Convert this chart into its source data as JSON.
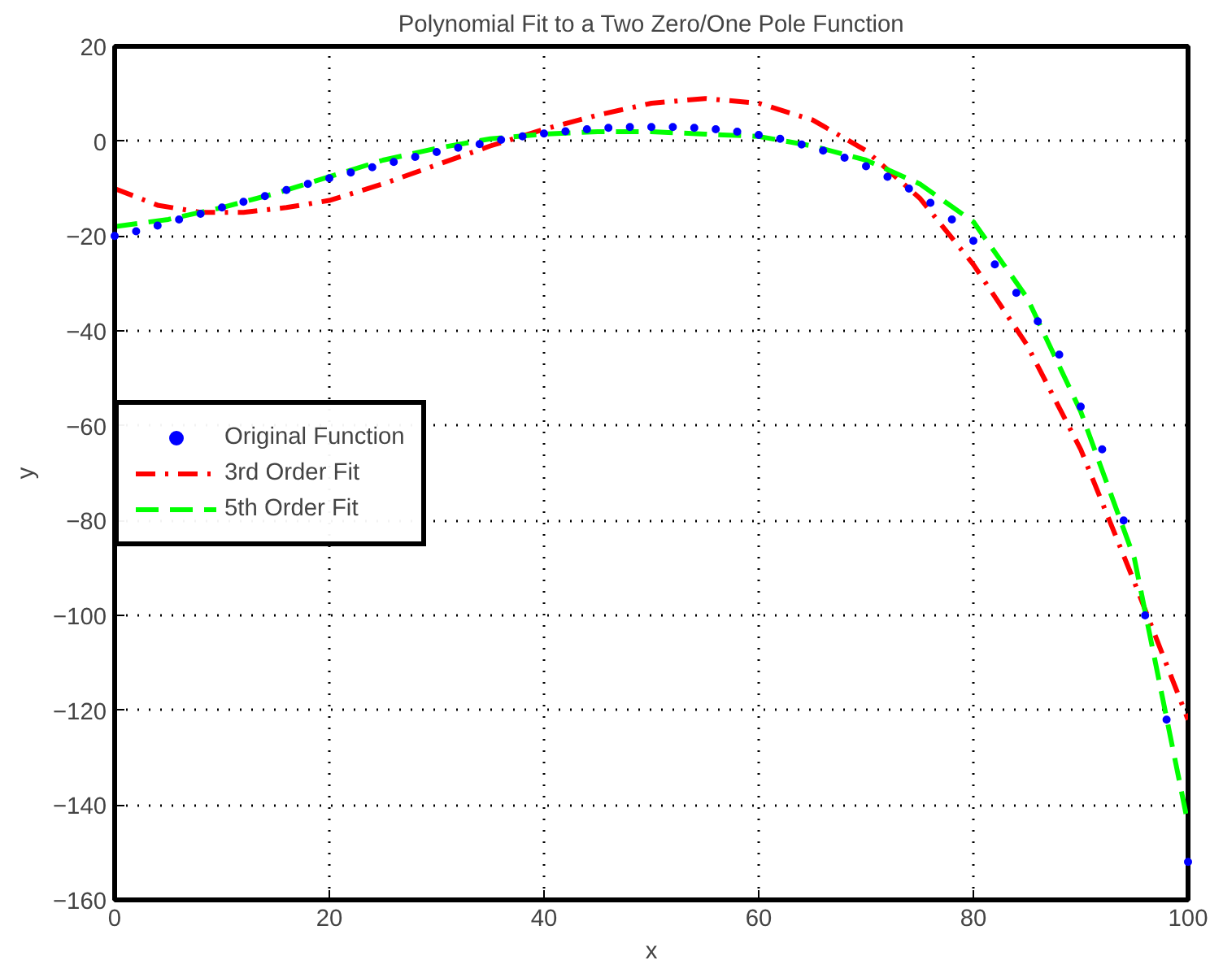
{
  "chart_data": {
    "type": "line",
    "title": "Polynomial Fit to a Two Zero/One Pole Function",
    "xlabel": "x",
    "ylabel": "y",
    "xlim": [
      0,
      100
    ],
    "ylim": [
      -160,
      20
    ],
    "xticks": [
      0,
      20,
      40,
      60,
      80,
      100
    ],
    "yticks": [
      -160,
      -140,
      -120,
      -100,
      -80,
      -60,
      -40,
      -20,
      0,
      20
    ],
    "grid": true,
    "legend": "left",
    "series": [
      {
        "name": "Original Function",
        "type": "scatter",
        "marker": "circle",
        "color": "#0000ff",
        "x": [
          0,
          2,
          4,
          6,
          8,
          10,
          12,
          14,
          16,
          18,
          20,
          22,
          24,
          26,
          28,
          30,
          32,
          34,
          36,
          38,
          40,
          42,
          44,
          46,
          48,
          50,
          52,
          54,
          56,
          58,
          60,
          62,
          64,
          66,
          68,
          70,
          72,
          74,
          76,
          78,
          80,
          82,
          84,
          86,
          88,
          90,
          92,
          94,
          96,
          98,
          100
        ],
        "values": [
          -20,
          -19,
          -17.8,
          -16.5,
          -15.3,
          -14,
          -12.8,
          -11.6,
          -10.3,
          -9,
          -7.8,
          -6.6,
          -5.5,
          -4.4,
          -3.3,
          -2.3,
          -1.4,
          -0.6,
          0.3,
          1,
          1.6,
          2.1,
          2.5,
          2.8,
          3,
          3,
          3,
          2.8,
          2.5,
          2,
          1.3,
          0.5,
          -0.7,
          -2,
          -3.5,
          -5.3,
          -7.5,
          -10,
          -13,
          -16.5,
          -21,
          -26,
          -32,
          -38,
          -45,
          -56,
          -65,
          -80,
          -100,
          -122,
          -152
        ]
      },
      {
        "name": "3rd Order Fit",
        "line_style": "dashdot",
        "color": "#ff0000",
        "x": [
          0,
          4,
          8,
          12,
          16,
          20,
          25,
          30,
          35,
          40,
          45,
          50,
          55,
          60,
          65,
          70,
          75,
          80,
          85,
          90,
          95,
          100
        ],
        "values": [
          -10,
          -13.5,
          -15,
          -15,
          -14,
          -12.5,
          -9,
          -5,
          -1,
          2.5,
          5.5,
          8,
          9,
          8,
          4.5,
          -2,
          -12,
          -26,
          -43,
          -65,
          -93,
          -122
        ]
      },
      {
        "name": "5th Order Fit",
        "line_style": "dashed",
        "color": "#00ff00",
        "x": [
          0,
          5,
          10,
          15,
          20,
          25,
          30,
          35,
          40,
          45,
          50,
          55,
          60,
          65,
          70,
          75,
          80,
          85,
          90,
          95,
          100
        ],
        "values": [
          -18,
          -16.5,
          -14,
          -11,
          -7.5,
          -4,
          -1.5,
          0.5,
          1.5,
          2,
          2,
          1.5,
          1,
          -1,
          -4,
          -9,
          -17,
          -33,
          -57,
          -88,
          -144
        ]
      }
    ]
  }
}
